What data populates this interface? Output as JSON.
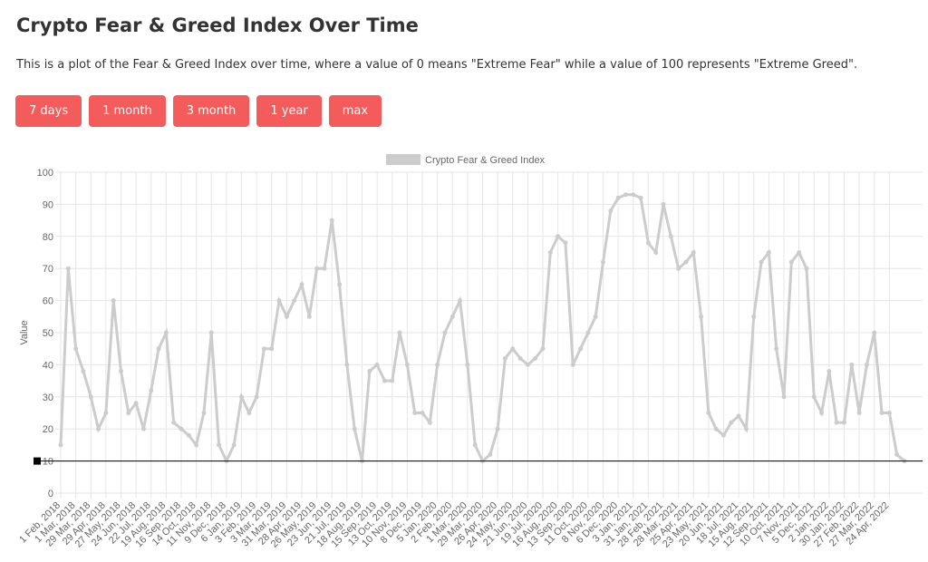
{
  "page": {
    "title": "Crypto Fear & Greed Index Over Time",
    "description": "This is a plot of the Fear & Greed Index over time, where a value of 0 means \"Extreme Fear\" while a value of 100 represents \"Extreme Greed\".",
    "buttons": [
      "7 days",
      "1 month",
      "3 month",
      "1 year",
      "max"
    ]
  },
  "chart_data": {
    "type": "line",
    "ylabel": "Value",
    "legend": "top",
    "grid": true,
    "series": [
      {
        "name": "Crypto Fear & Greed Index",
        "color": "#cccccc",
        "values": [
          15,
          70,
          45,
          38,
          30,
          20,
          25,
          60,
          38,
          25,
          28,
          20,
          32,
          45,
          50,
          22,
          20,
          18,
          15,
          25,
          50,
          15,
          10,
          15,
          30,
          25,
          30,
          45,
          45,
          60,
          55,
          60,
          65,
          55,
          70,
          70,
          85,
          65,
          40,
          20,
          10,
          38,
          40,
          35,
          35,
          50,
          40,
          25,
          25,
          22,
          40,
          50,
          55,
          60,
          40,
          15,
          10,
          12,
          20,
          42,
          45,
          42,
          40,
          42,
          45,
          75,
          80,
          78,
          40,
          45,
          50,
          55,
          72,
          88,
          92,
          93,
          93,
          92,
          78,
          75,
          90,
          80,
          70,
          72,
          75,
          55,
          25,
          20,
          18,
          22,
          24,
          20,
          55,
          72,
          75,
          45,
          30,
          72,
          75,
          70,
          30,
          25,
          38,
          22,
          22,
          40,
          25,
          40,
          50,
          25,
          25,
          12,
          10
        ]
      }
    ],
    "categories": [
      "1 Feb, 2018",
      null,
      "1 Mar, 2018",
      null,
      "29 Mar, 2018",
      null,
      "29 Apr, 2018",
      null,
      "27 May, 2018",
      null,
      "24 Jun, 2018",
      null,
      "22 Jul, 2018",
      null,
      "19 Aug, 2018",
      null,
      "16 Sep, 2018",
      null,
      "14 Oct, 2018",
      null,
      "11 Nov, 2018",
      null,
      "9 Dec, 2018",
      null,
      "6 Jan, 2019",
      null,
      "3 Feb, 2019",
      null,
      "3 Mar, 2019",
      null,
      "31 Mar, 2019",
      null,
      "28 Apr, 2019",
      null,
      "26 May, 2019",
      null,
      "23 Jun, 2019",
      null,
      "21 Jul, 2019",
      null,
      "18 Aug, 2019",
      null,
      "15 Sep, 2019",
      null,
      "13 Oct, 2019",
      null,
      "10 Nov, 2019",
      null,
      "8 Dec, 2019",
      null,
      "5 Jan, 2020",
      null,
      "2 Feb, 2020",
      null,
      "1 Mar, 2020",
      null,
      "29 Mar, 2020",
      null,
      "26 Apr, 2020",
      null,
      "24 May, 2020",
      null,
      "21 Jun, 2020",
      null,
      "19 Jul, 2020",
      null,
      "16 Aug, 2020",
      null,
      "13 Sep, 2020",
      null,
      "11 Oct, 2020",
      null,
      "8 Nov, 2020",
      null,
      "6 Dec, 2020",
      null,
      "3 Jan, 2021",
      null,
      "31 Jan, 2021",
      null,
      "28 Feb, 2021",
      null,
      "28 Mar, 2021",
      null,
      "25 Apr, 2021",
      null,
      "23 May, 2021",
      null,
      "20 Jun, 2021",
      null,
      "18 Jul, 2021",
      null,
      "15 Aug, 2021",
      null,
      "12 Sep, 2021",
      null,
      "10 Oct, 2021",
      null,
      "7 Nov, 2021",
      null,
      "5 Dec, 2021",
      null,
      "2 Jan, 2022",
      null,
      "30 Jan, 2022",
      null,
      "27 Feb, 2022",
      null,
      "27 Mar, 2022",
      null,
      "24 Apr, 2022",
      null,
      null
    ],
    "ylim": [
      0,
      100
    ],
    "yticks": [
      0,
      10,
      20,
      30,
      40,
      50,
      60,
      70,
      80,
      90,
      100
    ],
    "reference_line": {
      "value": 10,
      "color": "#000000"
    }
  }
}
